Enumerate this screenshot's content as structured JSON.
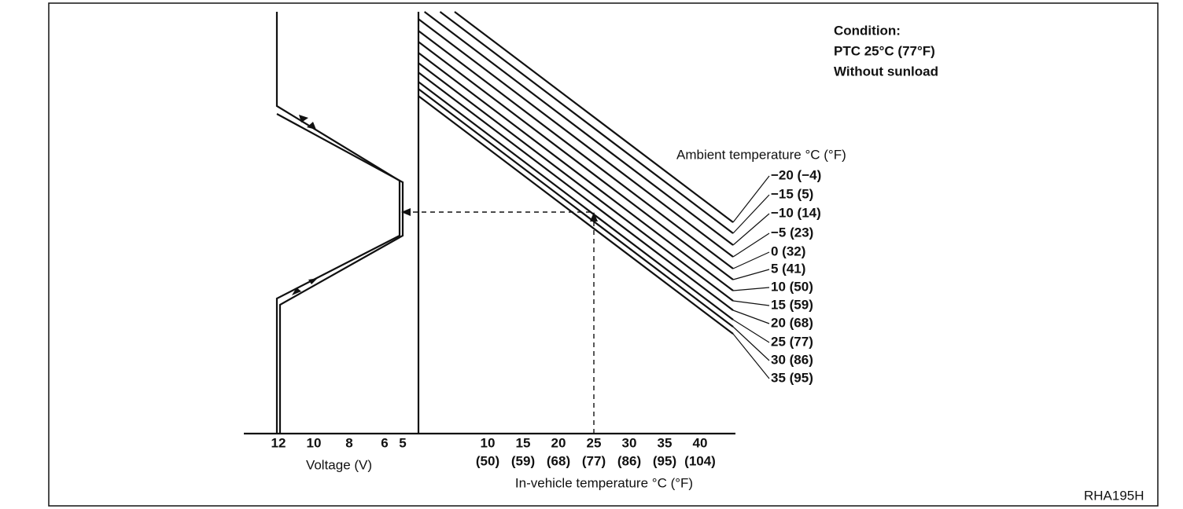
{
  "condition": [
    "Condition:",
    "PTC 25°C (77°F)",
    "Without sunload"
  ],
  "ambient": {
    "title": "Ambient temperature °C (°F)",
    "labels": [
      "−20 (−4)",
      "−15 (5)",
      "−10 (14)",
      "−5 (23)",
      "0 (32)",
      "5 (41)",
      "10 (50)",
      "15 (59)",
      "20 (68)",
      "25 (77)",
      "30 (86)",
      "35 (95)"
    ]
  },
  "voltage_axis": {
    "ticks": [
      "12",
      "10",
      "8",
      "6",
      "5"
    ],
    "label": "Voltage (V)"
  },
  "temperature_axis": {
    "ticks_c": [
      "10",
      "15",
      "20",
      "25",
      "30",
      "35",
      "40"
    ],
    "ticks_f": [
      "(50)",
      "(59)",
      "(68)",
      "(77)",
      "(86)",
      "(95)",
      "(104)"
    ],
    "label": "In-vehicle temperature °C (°F)"
  },
  "figure_id": "RHA195H"
}
